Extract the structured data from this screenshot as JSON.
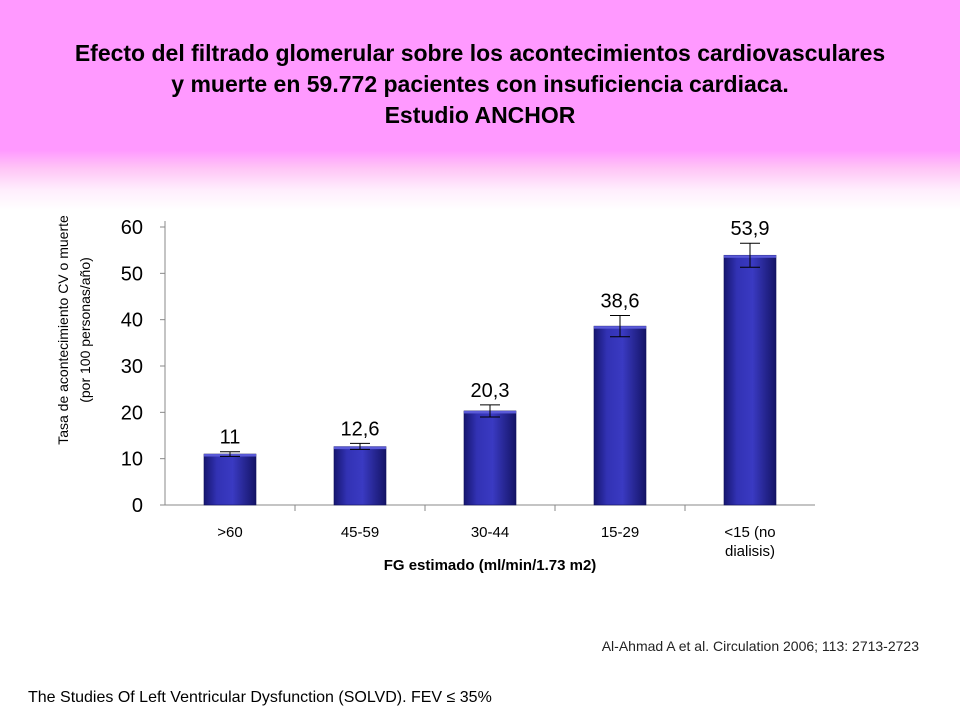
{
  "title": {
    "line1": "Efecto del filtrado glomerular sobre los acontecimientos cardiovasculares",
    "line2": "y muerte en 59.772 pacientes con insuficiencia cardiaca.",
    "line3": "Estudio ANCHOR"
  },
  "chart_data": {
    "type": "bar",
    "categories": [
      ">60",
      "45-59",
      "30-44",
      "15-29",
      "<15 (no dialisis)"
    ],
    "category_lines": [
      [
        ">60"
      ],
      [
        "45-59"
      ],
      [
        "30-44"
      ],
      [
        "15-29"
      ],
      [
        "<15 (no",
        "dialisis)"
      ]
    ],
    "values": [
      11,
      12.6,
      20.3,
      38.6,
      53.9
    ],
    "data_labels": [
      "11",
      "12,6",
      "20,3",
      "38,6",
      "53,9"
    ],
    "error_bars": [
      [
        10.5,
        11.5
      ],
      [
        12.0,
        13.3
      ],
      [
        19.0,
        21.6
      ],
      [
        36.3,
        40.9
      ],
      [
        51.3,
        56.5
      ]
    ],
    "ylim": [
      0,
      60
    ],
    "yticks": [
      0,
      10,
      20,
      30,
      40,
      50,
      60
    ],
    "xlabel": "FG estimado (ml/min/1.73 m2)",
    "ylabel_lines": [
      "Tasa de acontecimiento CV o muerte",
      "(por 100 personas/año)"
    ],
    "grid": false,
    "bar_color": "#2a2aa6"
  },
  "citations": {
    "reference": "Al-Ahmad A et al. Circulation 2006; 113: 2713-2723",
    "study": "The Studies Of Left Ventricular Dysfunction (SOLVD). FEV ≤ 35%"
  }
}
